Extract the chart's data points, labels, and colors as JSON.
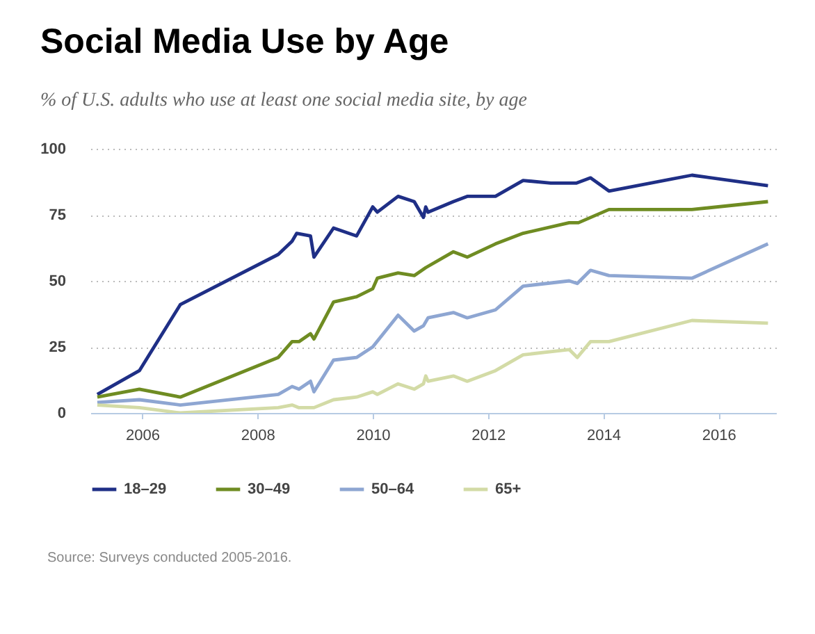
{
  "chart_data": {
    "type": "line",
    "title": "Social Media Use by Age",
    "subtitle": "% of U.S. adults who use at least one social media site, by age",
    "annotations": [
      "Source: Surveys conducted 2005-2016."
    ],
    "xlim": [
      2005.1,
      2017
    ],
    "xticks": [
      2006,
      2008,
      2010,
      2012,
      2014,
      2016
    ],
    "ylim": [
      0,
      100
    ],
    "yticks": [
      0,
      25,
      50,
      75,
      100
    ],
    "grid": "y",
    "legend": "bottom",
    "line_style": "solid",
    "marker": "none",
    "series": [
      {
        "name": "18–29",
        "color": "#1f2f86",
        "x": [
          2005.22,
          2005.95,
          2006.66,
          2008.36,
          2008.6,
          2008.68,
          2008.92,
          2008.98,
          2009.32,
          2009.72,
          2010.0,
          2010.08,
          2010.44,
          2010.72,
          2010.88,
          2010.92,
          2010.96,
          2011.4,
          2011.64,
          2012.13,
          2012.61,
          2013.09,
          2013.53,
          2013.78,
          2014.1,
          2015.54,
          2016.86
        ],
        "values": [
          7,
          16,
          41,
          60,
          65,
          68,
          67,
          59,
          70,
          67,
          78,
          76,
          82,
          80,
          74,
          78,
          76,
          80,
          82,
          82,
          88,
          87,
          87,
          89,
          84,
          90,
          86
        ]
      },
      {
        "name": "30–49",
        "color": "#6f8c22",
        "x": [
          2005.22,
          2005.95,
          2006.66,
          2008.36,
          2008.6,
          2008.72,
          2008.92,
          2008.98,
          2009.32,
          2009.72,
          2010.0,
          2010.08,
          2010.44,
          2010.72,
          2010.92,
          2011.4,
          2011.64,
          2012.13,
          2012.61,
          2013.41,
          2013.57,
          2014.1,
          2015.54,
          2016.86
        ],
        "values": [
          6,
          9,
          6,
          21,
          27,
          27,
          30,
          28,
          42,
          44,
          47,
          51,
          53,
          52,
          55,
          61,
          59,
          64,
          68,
          72,
          72,
          77,
          77,
          80
        ]
      },
      {
        "name": "50–64",
        "color": "#8ea6d2",
        "x": [
          2005.22,
          2005.95,
          2006.66,
          2008.36,
          2008.6,
          2008.72,
          2008.92,
          2008.98,
          2009.32,
          2009.72,
          2010.0,
          2010.44,
          2010.72,
          2010.88,
          2010.96,
          2011.4,
          2011.64,
          2012.13,
          2012.61,
          2013.41,
          2013.55,
          2013.78,
          2014.1,
          2015.54,
          2016.86
        ],
        "values": [
          4,
          5,
          3,
          7,
          10,
          9,
          12,
          8,
          20,
          21,
          25,
          37,
          31,
          33,
          36,
          38,
          36,
          39,
          48,
          50,
          49,
          54,
          52,
          51,
          64
        ]
      },
      {
        "name": "65+",
        "color": "#d3dba6",
        "x": [
          2005.22,
          2005.95,
          2006.66,
          2008.36,
          2008.6,
          2008.72,
          2008.98,
          2009.32,
          2009.72,
          2010.0,
          2010.08,
          2010.44,
          2010.72,
          2010.88,
          2010.92,
          2010.96,
          2011.4,
          2011.64,
          2012.13,
          2012.61,
          2013.41,
          2013.55,
          2013.78,
          2014.1,
          2015.54,
          2016.86
        ],
        "values": [
          3,
          2,
          0,
          2,
          3,
          2,
          2,
          5,
          6,
          8,
          7,
          11,
          9,
          11,
          14,
          12,
          14,
          12,
          16,
          22,
          24,
          21,
          27,
          27,
          35,
          34
        ]
      }
    ]
  }
}
